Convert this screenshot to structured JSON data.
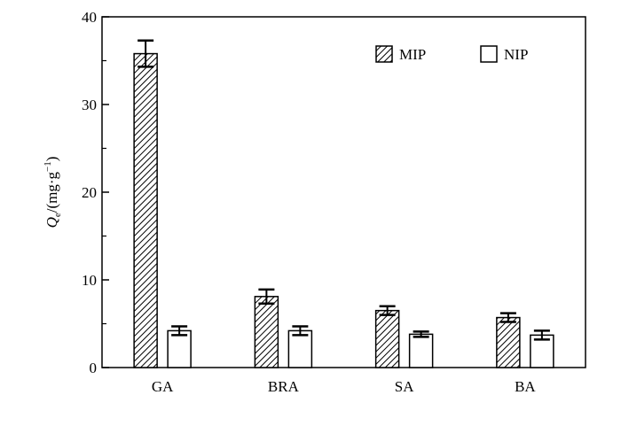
{
  "chart_data": {
    "type": "bar",
    "categories": [
      "GA",
      "BRA",
      "SA",
      "BA"
    ],
    "series": [
      {
        "name": "MIP",
        "values": [
          35.8,
          8.1,
          6.5,
          5.7
        ],
        "errors": [
          1.5,
          0.8,
          0.5,
          0.5
        ],
        "fill": "hatched"
      },
      {
        "name": "NIP",
        "values": [
          4.2,
          4.2,
          3.8,
          3.7
        ],
        "errors": [
          0.5,
          0.5,
          0.3,
          0.5
        ],
        "fill": "white"
      }
    ],
    "yticks": [
      0,
      10,
      20,
      30,
      40
    ],
    "ylim": [
      0,
      40
    ],
    "ylabel": "Qe/(mg·g−1)",
    "legend": "top-right",
    "grid": false
  }
}
